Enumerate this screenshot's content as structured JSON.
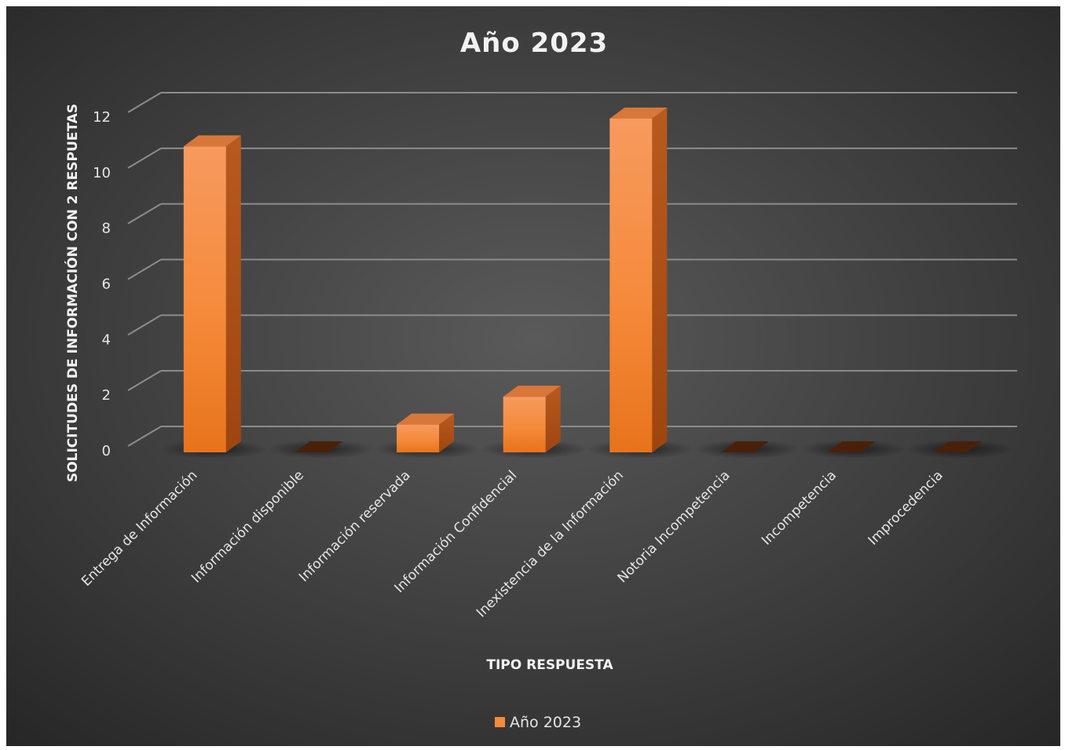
{
  "chart_data": {
    "type": "bar",
    "title": "Año 2023",
    "xlabel": "TIPO  RESPUESTA",
    "ylabel": "SOLICITUDES DE INFORMACIÓN CON 2 RESPUETAS",
    "categories": [
      "Entrega de Información",
      "Información disponible",
      "Información reservada",
      "Información Confidencial",
      "Inexistencia de la Información",
      "Notoria Incompetencia",
      "Incompetencia",
      "Improcedencia"
    ],
    "series": [
      {
        "name": "Año 2023",
        "values": [
          11,
          0,
          1,
          2,
          12,
          0,
          0,
          0
        ]
      }
    ],
    "ylim": [
      0,
      12
    ],
    "yticks": [
      0,
      2,
      4,
      6,
      8,
      10,
      12
    ],
    "grid": true,
    "legend_position": "bottom",
    "style": "3d-column",
    "colors": {
      "bar_top": "#f79a5e",
      "bar_mid": "#f58a3a",
      "bar_bottom": "#e8731c",
      "bar_side": "#b3551a",
      "bar_cap": "#d8773a",
      "background_center": "#5a5a5a",
      "background_edge": "#262626",
      "gridline": "#8c8c8c"
    }
  }
}
